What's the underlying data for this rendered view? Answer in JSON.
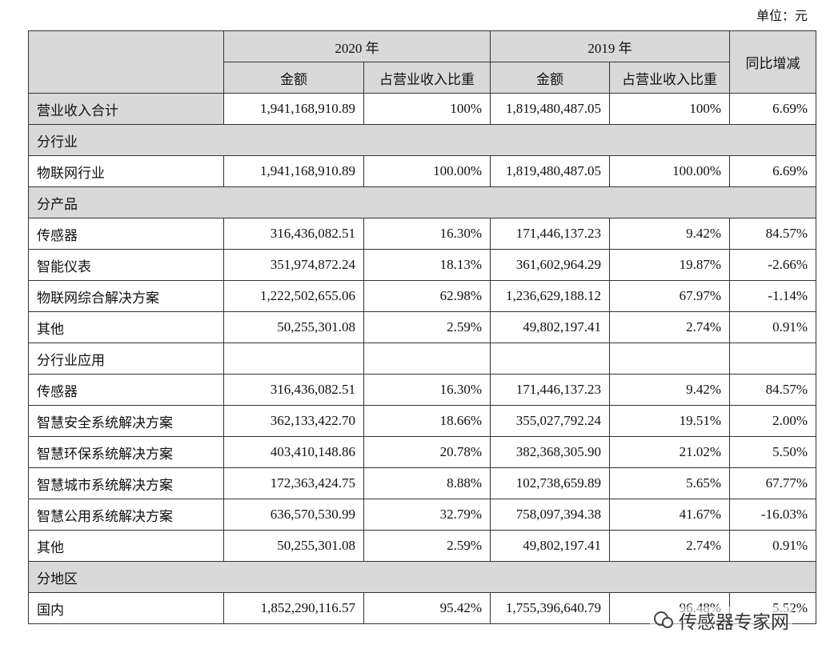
{
  "unit": "单位：元",
  "table": {
    "header": {
      "years": [
        "2020 年",
        "2019 年"
      ],
      "change": "同比增减",
      "sub": [
        "金额",
        "占营业收入比重",
        "金额",
        "占营业收入比重"
      ]
    },
    "rows": [
      {
        "label": "营业收入合计",
        "cells": [
          "1,941,168,910.89",
          "100%",
          "1,819,480,487.05",
          "100%",
          "6.69%"
        ]
      },
      {
        "section": "分行业"
      },
      {
        "label": "物联网行业",
        "cells": [
          "1,941,168,910.89",
          "100.00%",
          "1,819,480,487.05",
          "100.00%",
          "6.69%"
        ]
      },
      {
        "section": "分产品"
      },
      {
        "label": "传感器",
        "cells": [
          "316,436,082.51",
          "16.30%",
          "171,446,137.23",
          "9.42%",
          "84.57%"
        ]
      },
      {
        "label": "智能仪表",
        "cells": [
          "351,974,872.24",
          "18.13%",
          "361,602,964.29",
          "19.87%",
          "-2.66%"
        ]
      },
      {
        "label": "物联网综合解决方案",
        "cells": [
          "1,222,502,655.06",
          "62.98%",
          "1,236,629,188.12",
          "67.97%",
          "-1.14%"
        ]
      },
      {
        "label": "其他",
        "cells": [
          "50,255,301.08",
          "2.59%",
          "49,802,197.41",
          "2.74%",
          "0.91%"
        ]
      },
      {
        "label": "分行业应用",
        "cells": []
      },
      {
        "label": "传感器",
        "cells": [
          "316,436,082.51",
          "16.30%",
          "171,446,137.23",
          "9.42%",
          "84.57%"
        ]
      },
      {
        "label": "智慧安全系统解决方案",
        "cells": [
          "362,133,422.70",
          "18.66%",
          "355,027,792.24",
          "19.51%",
          "2.00%"
        ]
      },
      {
        "label": "智慧环保系统解决方案",
        "cells": [
          "403,410,148.86",
          "20.78%",
          "382,368,305.90",
          "21.02%",
          "5.50%"
        ]
      },
      {
        "label": "智慧城市系统解决方案",
        "cells": [
          "172,363,424.75",
          "8.88%",
          "102,738,659.89",
          "5.65%",
          "67.77%"
        ]
      },
      {
        "label": "智慧公用系统解决方案",
        "cells": [
          "636,570,530.99",
          "32.79%",
          "758,097,394.38",
          "41.67%",
          "-16.03%"
        ]
      },
      {
        "label": "其他",
        "cells": [
          "50,255,301.08",
          "2.59%",
          "49,802,197.41",
          "2.74%",
          "0.91%"
        ]
      },
      {
        "section": "分地区"
      },
      {
        "label": "国内",
        "cells": [
          "1,852,290,116.57",
          "95.42%",
          "1,755,396,640.79",
          "96.48%",
          "5.52%"
        ]
      }
    ]
  },
  "watermark": "传感器专家网"
}
